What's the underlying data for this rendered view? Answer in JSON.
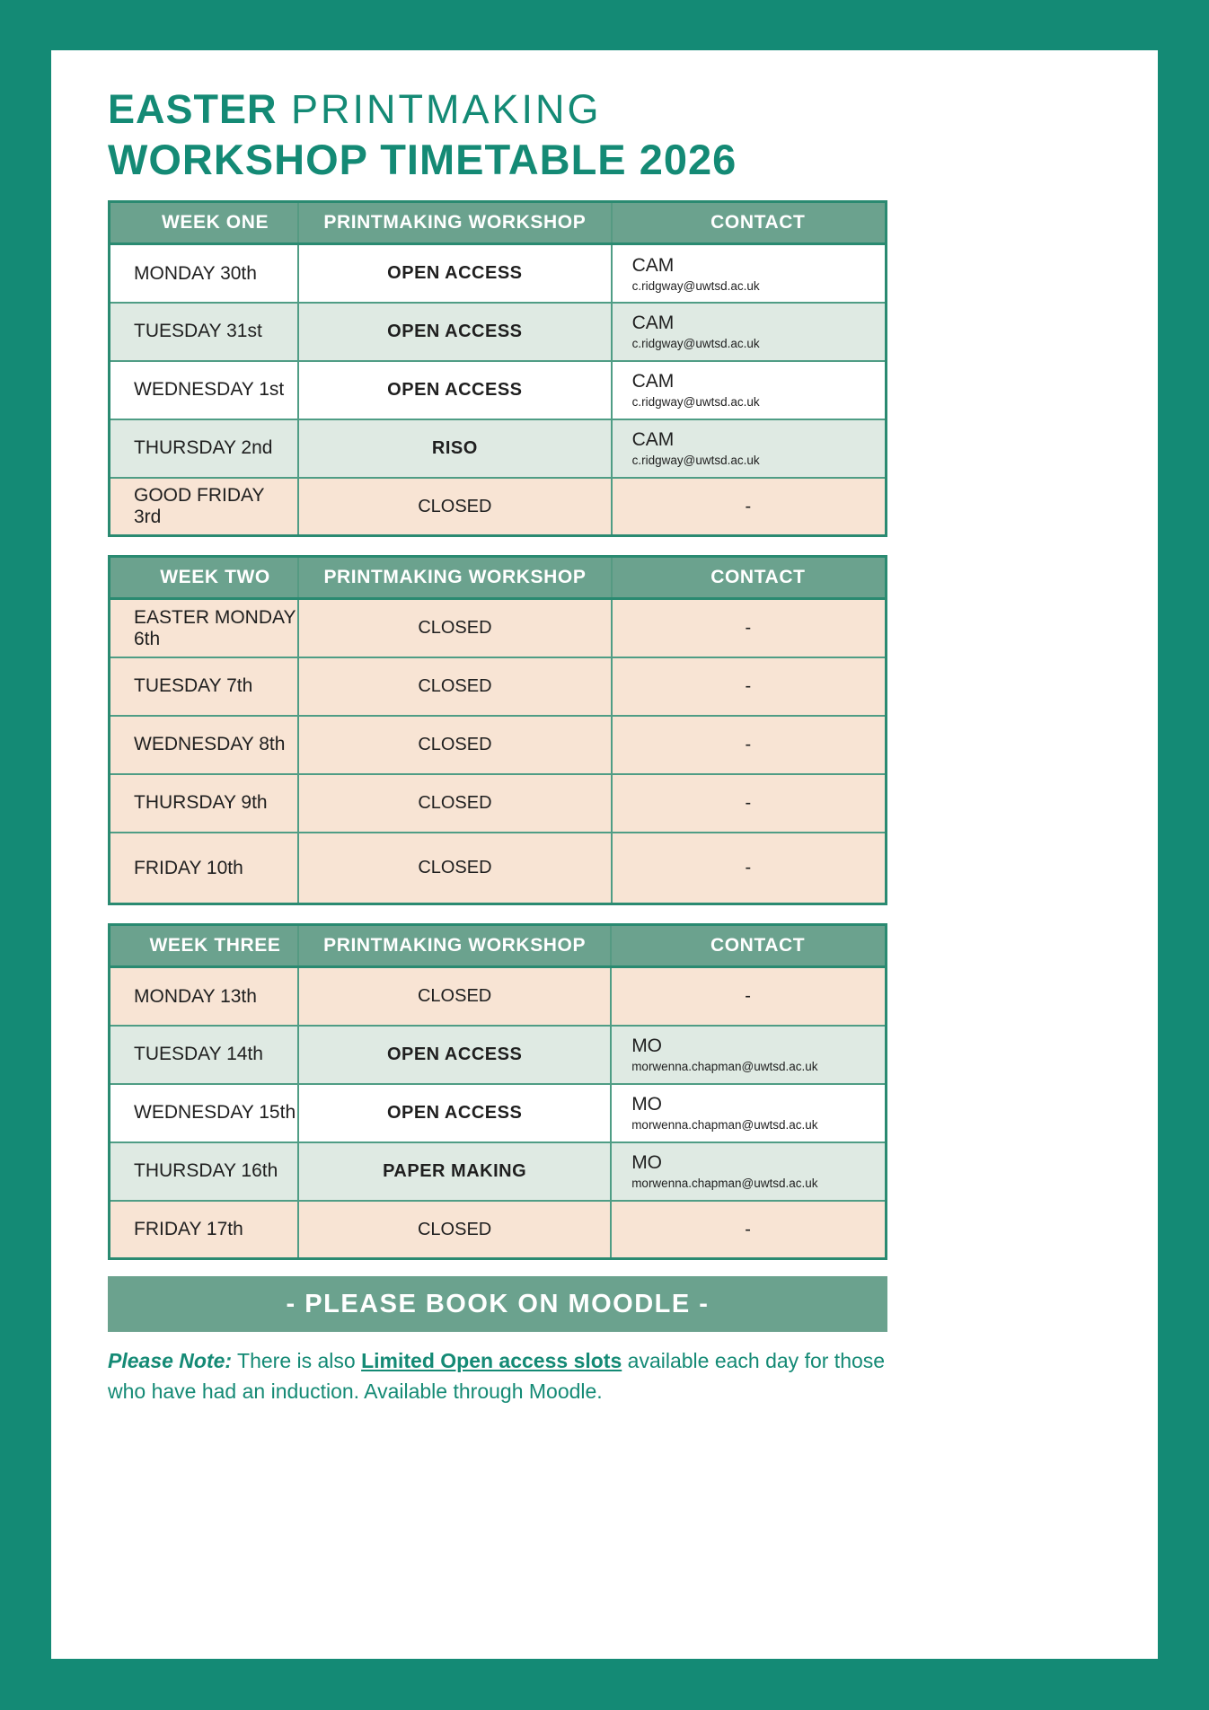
{
  "title": {
    "line1_bold": "EASTER",
    "line1_light": " PRINTMAKING",
    "line2": "WORKSHOP TIMETABLE 2026"
  },
  "colors": {
    "accent_teal": "#148a75",
    "header_sage": "#6ba28e",
    "row_green": "#dfeae3",
    "row_peach": "#f8e4d4",
    "text_dark": "#1f1f1f"
  },
  "tables": [
    {
      "headers": {
        "week": "WEEK ONE",
        "workshop": "PRINTMAKING WORKSHOP",
        "contact": "CONTACT"
      },
      "rows": [
        {
          "day": "MONDAY 30th",
          "workshop": "OPEN ACCESS",
          "workshop_bold": true,
          "tone": "white",
          "contact_name": "CAM",
          "contact_email": "c.ridgway@uwtsd.ac.uk"
        },
        {
          "day": "TUESDAY 31st",
          "workshop": "OPEN ACCESS",
          "workshop_bold": true,
          "tone": "green",
          "contact_name": "CAM",
          "contact_email": "c.ridgway@uwtsd.ac.uk"
        },
        {
          "day": "WEDNESDAY 1st",
          "workshop": "OPEN ACCESS",
          "workshop_bold": true,
          "tone": "white",
          "contact_name": "CAM",
          "contact_email": "c.ridgway@uwtsd.ac.uk"
        },
        {
          "day": "THURSDAY 2nd",
          "workshop": "RISO",
          "workshop_bold": true,
          "tone": "green",
          "contact_name": "CAM",
          "contact_email": "c.ridgway@uwtsd.ac.uk"
        },
        {
          "day": "GOOD FRIDAY 3rd",
          "workshop": "CLOSED",
          "workshop_bold": false,
          "tone": "peach",
          "contact_dash": "-"
        }
      ]
    },
    {
      "headers": {
        "week": "WEEK TWO",
        "workshop": "PRINTMAKING WORKSHOP",
        "contact": "CONTACT"
      },
      "rows": [
        {
          "day": "EASTER MONDAY 6th",
          "workshop": "CLOSED",
          "workshop_bold": false,
          "tone": "peach",
          "contact_dash": "-"
        },
        {
          "day": "TUESDAY 7th",
          "workshop": "CLOSED",
          "workshop_bold": false,
          "tone": "peach",
          "contact_dash": "-"
        },
        {
          "day": "WEDNESDAY 8th",
          "workshop": "CLOSED",
          "workshop_bold": false,
          "tone": "peach",
          "contact_dash": "-"
        },
        {
          "day": "THURSDAY 9th",
          "workshop": "CLOSED",
          "workshop_bold": false,
          "tone": "peach",
          "contact_dash": "-"
        },
        {
          "day": "FRIDAY 10th",
          "workshop": "CLOSED",
          "workshop_bold": false,
          "tone": "peach",
          "contact_dash": "-",
          "tall": true
        }
      ]
    },
    {
      "headers": {
        "week": "WEEK THREE",
        "workshop": "PRINTMAKING WORKSHOP",
        "contact": "CONTACT"
      },
      "rows": [
        {
          "day": "MONDAY 13th",
          "workshop": "CLOSED",
          "workshop_bold": false,
          "tone": "peach",
          "contact_dash": "-"
        },
        {
          "day": "TUESDAY 14th",
          "workshop": "OPEN ACCESS",
          "workshop_bold": true,
          "tone": "green",
          "contact_name": "MO",
          "contact_email": "morwenna.chapman@uwtsd.ac.uk"
        },
        {
          "day": "WEDNESDAY 15th",
          "workshop": "OPEN ACCESS",
          "workshop_bold": true,
          "tone": "white",
          "contact_name": "MO",
          "contact_email": "morwenna.chapman@uwtsd.ac.uk"
        },
        {
          "day": "THURSDAY 16th",
          "workshop": "PAPER MAKING",
          "workshop_bold": true,
          "tone": "green",
          "contact_name": "MO",
          "contact_email": "morwenna.chapman@uwtsd.ac.uk"
        },
        {
          "day": "FRIDAY 17th",
          "workshop": "CLOSED",
          "workshop_bold": false,
          "tone": "peach",
          "contact_dash": "-"
        }
      ]
    }
  ],
  "banner": "- PLEASE BOOK ON MOODLE -",
  "note": {
    "prefix": "Please Note:",
    "text_before": " There is also ",
    "emphasis": "Limited Open access slots",
    "text_after": " available each day for those who have had an induction. Available through Moodle."
  }
}
